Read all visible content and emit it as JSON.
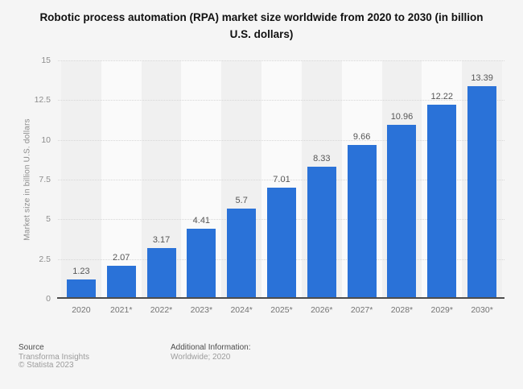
{
  "title_lines": [
    "Robotic process automation (RPA) market size worldwide from 2020 to 2030 (in billion",
    "U.S. dollars)"
  ],
  "chart_data": {
    "type": "bar",
    "title": "Robotic process automation (RPA) market size worldwide from 2020 to 2030 (in billion U.S. dollars)",
    "categories": [
      "2020",
      "2021*",
      "2022*",
      "2023*",
      "2024*",
      "2025*",
      "2026*",
      "2027*",
      "2028*",
      "2029*",
      "2030*"
    ],
    "values": [
      1.23,
      2.07,
      3.17,
      4.41,
      5.7,
      7.01,
      8.33,
      9.66,
      10.96,
      12.22,
      13.39
    ],
    "xlabel": "",
    "ylabel": "Market size in billion U.S. dollars",
    "ylim": [
      0,
      15
    ],
    "ytick_labels": [
      "0",
      "2.5",
      "5",
      "7.5",
      "10",
      "12.5",
      "15"
    ],
    "grid": "horizontal-dotted",
    "legend": "none",
    "bar_color": "#2a72d8",
    "stripe_colors": [
      "#f0f0f0",
      "#fafafa"
    ],
    "value_labels_shown": true
  },
  "footer": {
    "source_label": "Source",
    "source_lines": [
      "Transforma Insights",
      "© Statista 2023"
    ],
    "additional_info_label": "Additional Information:",
    "additional_info_lines": [
      "Worldwide; 2020"
    ]
  }
}
